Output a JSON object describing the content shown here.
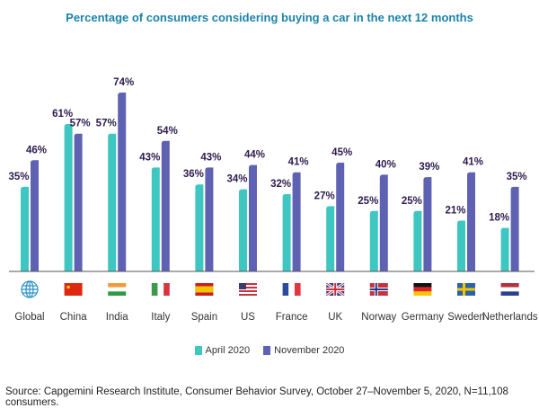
{
  "chart_data": {
    "type": "bar",
    "title": "Percentage of consumers considering buying a car in the next 12 months",
    "categories": [
      "Global",
      "China",
      "India",
      "Italy",
      "Spain",
      "US",
      "France",
      "UK",
      "Norway",
      "Germany",
      "Sweden",
      "Netherlands"
    ],
    "series": [
      {
        "name": "April 2020",
        "color": "#3ec6c1",
        "values": [
          35,
          61,
          57,
          43,
          36,
          34,
          32,
          27,
          25,
          25,
          21,
          18
        ]
      },
      {
        "name": "November 2020",
        "color": "#5f62b3",
        "values": [
          46,
          57,
          74,
          54,
          43,
          44,
          41,
          45,
          40,
          39,
          41,
          35
        ]
      }
    ],
    "value_format": "percent",
    "ylim": [
      0,
      74
    ],
    "grid": false,
    "legend": "bottom",
    "category_icons": [
      "globe-icon",
      "china-flag-icon",
      "india-flag-icon",
      "italy-flag-icon",
      "spain-flag-icon",
      "us-flag-icon",
      "france-flag-icon",
      "uk-flag-icon",
      "norway-flag-icon",
      "germany-flag-icon",
      "sweden-flag-icon",
      "netherlands-flag-icon"
    ]
  },
  "source": "Source: Capgemini Research Institute, Consumer Behavior Survey, October 27–November 5, 2020, N=11,108 consumers.",
  "colors": {
    "title": "#1b83a8",
    "label": "#2d1b4e"
  }
}
